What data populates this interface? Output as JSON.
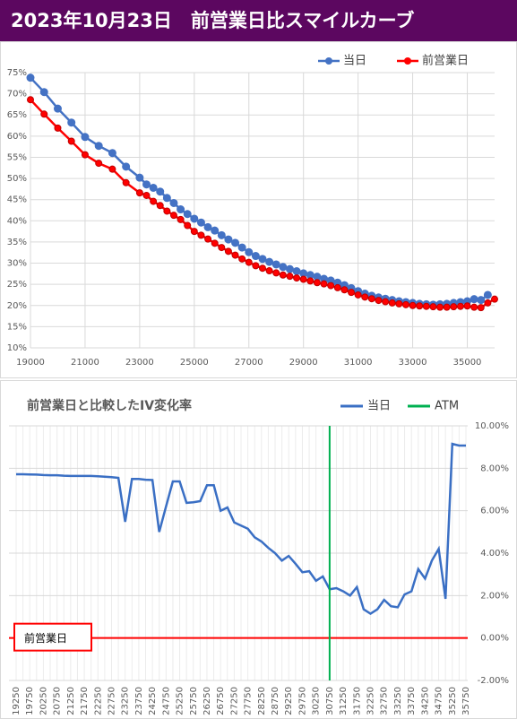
{
  "header": {
    "title": "2023年10月23日　前営業日比スマイルカーブ"
  },
  "chart_data": [
    {
      "type": "line",
      "x": [
        19000,
        19500,
        20000,
        20500,
        21000,
        21500,
        22000,
        22500,
        23000,
        23250,
        23500,
        23750,
        24000,
        24250,
        24500,
        24750,
        25000,
        25250,
        25500,
        25750,
        26000,
        26250,
        26500,
        26750,
        27000,
        27250,
        27500,
        27750,
        28000,
        28250,
        28500,
        28750,
        29000,
        29250,
        29500,
        29750,
        30000,
        30250,
        30500,
        30750,
        31000,
        31250,
        31500,
        31750,
        32000,
        32250,
        32500,
        32750,
        33000,
        33250,
        33500,
        33750,
        34000,
        34250,
        34500,
        34750,
        35000,
        35250,
        35500,
        35750,
        36000
      ],
      "series": [
        {
          "name": "当日",
          "color": "#4472c4",
          "values": [
            73.8,
            70.4,
            66.5,
            63.2,
            59.8,
            57.7,
            56.0,
            52.8,
            50.2,
            48.6,
            47.8,
            46.9,
            45.4,
            44.2,
            42.7,
            41.6,
            40.5,
            39.6,
            38.5,
            37.7,
            36.6,
            35.6,
            34.8,
            33.7,
            32.6,
            31.7,
            31.0,
            30.3,
            29.7,
            29.1,
            28.6,
            28.1,
            27.6,
            27.2,
            26.8,
            26.3,
            25.9,
            25.4,
            24.8,
            24.1,
            23.4,
            22.8,
            22.3,
            21.9,
            21.6,
            21.3,
            21.0,
            20.8,
            20.6,
            20.4,
            20.3,
            20.2,
            20.3,
            20.4,
            20.6,
            20.8,
            21.0,
            21.5,
            21.3,
            22.5,
            null
          ]
        },
        {
          "name": "前営業日",
          "color": "#ff0000",
          "values": [
            68.6,
            65.2,
            61.9,
            58.8,
            55.6,
            53.6,
            52.2,
            49.0,
            46.6,
            46.0,
            44.6,
            43.6,
            42.3,
            41.3,
            40.3,
            38.9,
            37.5,
            36.6,
            35.7,
            34.7,
            33.7,
            32.8,
            31.9,
            31.0,
            30.2,
            29.4,
            28.8,
            28.2,
            27.7,
            27.2,
            26.9,
            26.5,
            26.2,
            25.8,
            25.4,
            25.1,
            24.7,
            24.2,
            23.7,
            23.1,
            22.5,
            22.0,
            21.6,
            21.2,
            20.9,
            20.6,
            20.4,
            20.2,
            20.0,
            19.9,
            19.8,
            19.7,
            19.6,
            19.6,
            19.7,
            19.8,
            19.9,
            19.6,
            19.5,
            20.6,
            21.5
          ]
        }
      ],
      "xlim": [
        19000,
        36000
      ],
      "xticks": [
        19000,
        21000,
        23000,
        25000,
        27000,
        29000,
        31000,
        33000,
        35000
      ],
      "ylim": [
        10,
        75
      ],
      "yticks": [
        {
          "value": 10,
          "label": "10%"
        },
        {
          "value": 15,
          "label": "15%"
        },
        {
          "value": 20,
          "label": "20%"
        },
        {
          "value": 25,
          "label": "25%"
        },
        {
          "value": 30,
          "label": "30%"
        },
        {
          "value": 35,
          "label": "35%"
        },
        {
          "value": 40,
          "label": "40%"
        },
        {
          "value": 45,
          "label": "45%"
        },
        {
          "value": 50,
          "label": "50%"
        },
        {
          "value": 55,
          "label": "55%"
        },
        {
          "value": 60,
          "label": "60%"
        },
        {
          "value": 65,
          "label": "65%"
        },
        {
          "value": 70,
          "label": "70%"
        },
        {
          "value": 75,
          "label": "75%"
        }
      ],
      "grid": true,
      "legend": "top-right"
    },
    {
      "type": "line",
      "title": "前営業日と比較したIV変化率",
      "x": [
        19250,
        19500,
        19750,
        20000,
        20250,
        20500,
        20750,
        21000,
        21250,
        21500,
        21750,
        22000,
        22250,
        22500,
        22750,
        23000,
        23250,
        23500,
        23750,
        24000,
        24250,
        24500,
        24750,
        25000,
        25250,
        25500,
        25750,
        26000,
        26250,
        26500,
        26750,
        27000,
        27250,
        27500,
        27750,
        28000,
        28250,
        28500,
        28750,
        29000,
        29250,
        29500,
        29750,
        30000,
        30250,
        30500,
        30750,
        31000,
        31250,
        31500,
        31750,
        32000,
        32250,
        32500,
        32750,
        33000,
        33250,
        33500,
        33750,
        34000,
        34250,
        34500,
        34750,
        35000,
        35250,
        35500,
        35750
      ],
      "series": [
        {
          "name": "当日",
          "color": "#3a6fc4",
          "axis": "y2",
          "values": [
            7.72,
            7.72,
            7.71,
            7.7,
            7.68,
            7.67,
            7.67,
            7.65,
            7.64,
            7.64,
            7.64,
            7.64,
            7.62,
            7.6,
            7.58,
            7.55,
            5.48,
            7.5,
            7.5,
            7.46,
            7.45,
            5.0,
            6.2,
            7.38,
            7.38,
            6.37,
            6.4,
            6.45,
            7.2,
            7.2,
            6.0,
            6.15,
            5.45,
            5.3,
            5.15,
            4.75,
            4.55,
            4.25,
            4.0,
            3.65,
            3.87,
            3.5,
            3.1,
            3.15,
            2.7,
            2.9,
            2.3,
            2.35,
            2.2,
            2.0,
            2.4,
            1.35,
            1.15,
            1.35,
            1.8,
            1.5,
            1.45,
            2.05,
            2.2,
            3.25,
            2.8,
            3.65,
            4.2,
            1.85,
            9.15,
            9.07,
            9.07
          ]
        }
      ],
      "markers": [
        {
          "name": "ATM",
          "color": "#00b050",
          "x": 30750
        }
      ],
      "baseline": {
        "name": "前営業日",
        "color": "#ff0000",
        "value": 0
      },
      "xlim": [
        19250,
        35750
      ],
      "xticks": [
        19250,
        19750,
        20250,
        20750,
        21250,
        21750,
        22250,
        22750,
        23250,
        23750,
        24250,
        24750,
        25250,
        25750,
        26250,
        26750,
        27250,
        27750,
        28250,
        28750,
        29250,
        29750,
        30250,
        30750,
        31250,
        31750,
        32250,
        32750,
        33250,
        33750,
        34250,
        34750,
        35250,
        35750
      ],
      "y2lim": [
        -2,
        10
      ],
      "y2ticks": [
        {
          "value": -2,
          "label": "-2.00%"
        },
        {
          "value": 0,
          "label": "0.00%"
        },
        {
          "value": 2,
          "label": "2.00%"
        },
        {
          "value": 4,
          "label": "4.00%"
        },
        {
          "value": 6,
          "label": "6.00%"
        },
        {
          "value": 8,
          "label": "8.00%"
        },
        {
          "value": 10,
          "label": "10.00%"
        }
      ],
      "grid": true,
      "legend": "top-right"
    }
  ]
}
